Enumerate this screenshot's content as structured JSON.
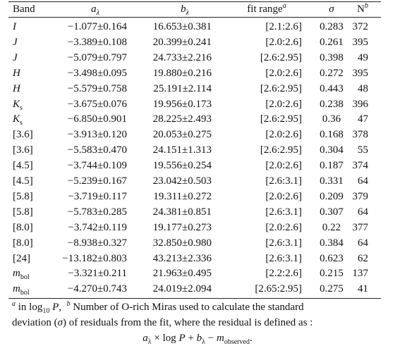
{
  "table": {
    "header": [
      {
        "text": "Band"
      },
      {
        "text": "a",
        "sub": "λ",
        "italic": true
      },
      {
        "text": "b",
        "sub": "λ",
        "italic": true
      },
      {
        "text": "fit range",
        "sup": "a"
      },
      {
        "text": "σ",
        "italic": true
      },
      {
        "text": "N",
        "sup": "b"
      }
    ],
    "rows": [
      {
        "band": {
          "text": "I",
          "italic": true
        },
        "a": "−1.077±0.164",
        "b": "16.653±0.381",
        "range": "[2.1:2.6]",
        "sigma": 0.283,
        "n": 372
      },
      {
        "band": {
          "text": "J",
          "italic": true
        },
        "a": "−3.389±0.108",
        "b": "20.399±0.241",
        "range": "[2.0:2.6]",
        "sigma": 0.261,
        "n": 395
      },
      {
        "band": {
          "text": "J",
          "italic": true
        },
        "a": "−5.079±0.797",
        "b": "24.733±2.216",
        "range": "[2.6:2.95]",
        "sigma": 0.398,
        "n": 49
      },
      {
        "band": {
          "text": "H",
          "italic": true
        },
        "a": "−3.498±0.095",
        "b": "19.880±0.216",
        "range": "[2.0:2.6]",
        "sigma": 0.272,
        "n": 395
      },
      {
        "band": {
          "text": "H",
          "italic": true
        },
        "a": "−5.579±0.758",
        "b": "25.191±2.114",
        "range": "[2.6:2.95]",
        "sigma": 0.443,
        "n": 48
      },
      {
        "band": {
          "text": "K",
          "sub": "s",
          "italic": true
        },
        "a": "−3.675±0.076",
        "b": "19.956±0.173",
        "range": "[2.0:2.6]",
        "sigma": 0.238,
        "n": 396
      },
      {
        "band": {
          "text": "K",
          "sub": "s",
          "italic": true
        },
        "a": "−6.850±0.901",
        "b": "28.225±2.493",
        "range": "[2.6:2.95]",
        "sigma": 0.36,
        "n": 47
      },
      {
        "band": {
          "text": "[3.6]"
        },
        "a": "−3.913±0.120",
        "b": "20.053±0.275",
        "range": "[2.0:2.6]",
        "sigma": 0.168,
        "n": 378
      },
      {
        "band": {
          "text": "[3.6]"
        },
        "a": "−5.583±0.470",
        "b": "24.151±1.313",
        "range": "[2.6:2.95]",
        "sigma": 0.304,
        "n": 55
      },
      {
        "band": {
          "text": "[4.5]"
        },
        "a": "−3.744±0.109",
        "b": "19.556±0.254",
        "range": "[2.0:2.6]",
        "sigma": 0.187,
        "n": 374
      },
      {
        "band": {
          "text": "[4.5]"
        },
        "a": "−5.239±0.167",
        "b": "23.042±0.503",
        "range": "[2.6:3.1]",
        "sigma": 0.331,
        "n": 64
      },
      {
        "band": {
          "text": "[5.8]"
        },
        "a": "−3.719±0.117",
        "b": "19.311±0.272",
        "range": "[2.0:2.6]",
        "sigma": 0.209,
        "n": 379
      },
      {
        "band": {
          "text": "[5.8]"
        },
        "a": "−5.783±0.285",
        "b": "24.381±0.851",
        "range": "[2.6:3.1]",
        "sigma": 0.307,
        "n": 64
      },
      {
        "band": {
          "text": "[8.0]"
        },
        "a": "−3.742±0.119",
        "b": "19.177±0.273",
        "range": "[2.0:2.6]",
        "sigma": 0.22,
        "n": 377
      },
      {
        "band": {
          "text": "[8.0]"
        },
        "a": "−8.938±0.327",
        "b": "32.850±0.980",
        "range": "[2.6:3.1]",
        "sigma": 0.384,
        "n": 64
      },
      {
        "band": {
          "text": "[24]"
        },
        "a": "−13.182±0.803",
        "b": "43.213±2.336",
        "range": "[2.6:3.1]",
        "sigma": 0.623,
        "n": 62
      },
      {
        "band": {
          "text": "m",
          "sub": "bol",
          "italic": true
        },
        "a": "−3.321±0.211",
        "b": "21.963±0.495",
        "range": "[2.2:2.6]",
        "sigma": 0.215,
        "n": 137
      },
      {
        "band": {
          "text": "m",
          "sub": "bol",
          "italic": true
        },
        "a": "−4.270±0.743",
        "b": "24.019±2.094",
        "range": "[2.65:2.95]",
        "sigma": 0.275,
        "n": 41
      }
    ],
    "footnote": [
      [
        {
          "text": "a",
          "style": "sup"
        },
        {
          "text": " in log"
        },
        {
          "text": "10",
          "style": "sub"
        },
        {
          "text": " P",
          "style": "i"
        },
        {
          "text": ",  "
        },
        {
          "text": "b",
          "style": "sup"
        },
        {
          "text": " Number of O-rich Miras used to calculate the standard"
        }
      ],
      [
        {
          "text": "deviation ("
        },
        {
          "text": "σ",
          "style": "i"
        },
        {
          "text": ") of residuals from the fit, where the residual is defined as :"
        }
      ],
      [
        {
          "text": "a",
          "style": "i"
        },
        {
          "text": "λ",
          "style": "sub"
        },
        {
          "text": " × log "
        },
        {
          "text": "P",
          "style": "i"
        },
        {
          "text": " + "
        },
        {
          "text": "b",
          "style": "i"
        },
        {
          "text": "λ",
          "style": "sub"
        },
        {
          "text": " − "
        },
        {
          "text": "m",
          "style": "i"
        },
        {
          "text": "observed",
          "style": "sub"
        },
        {
          "text": "."
        }
      ]
    ]
  }
}
